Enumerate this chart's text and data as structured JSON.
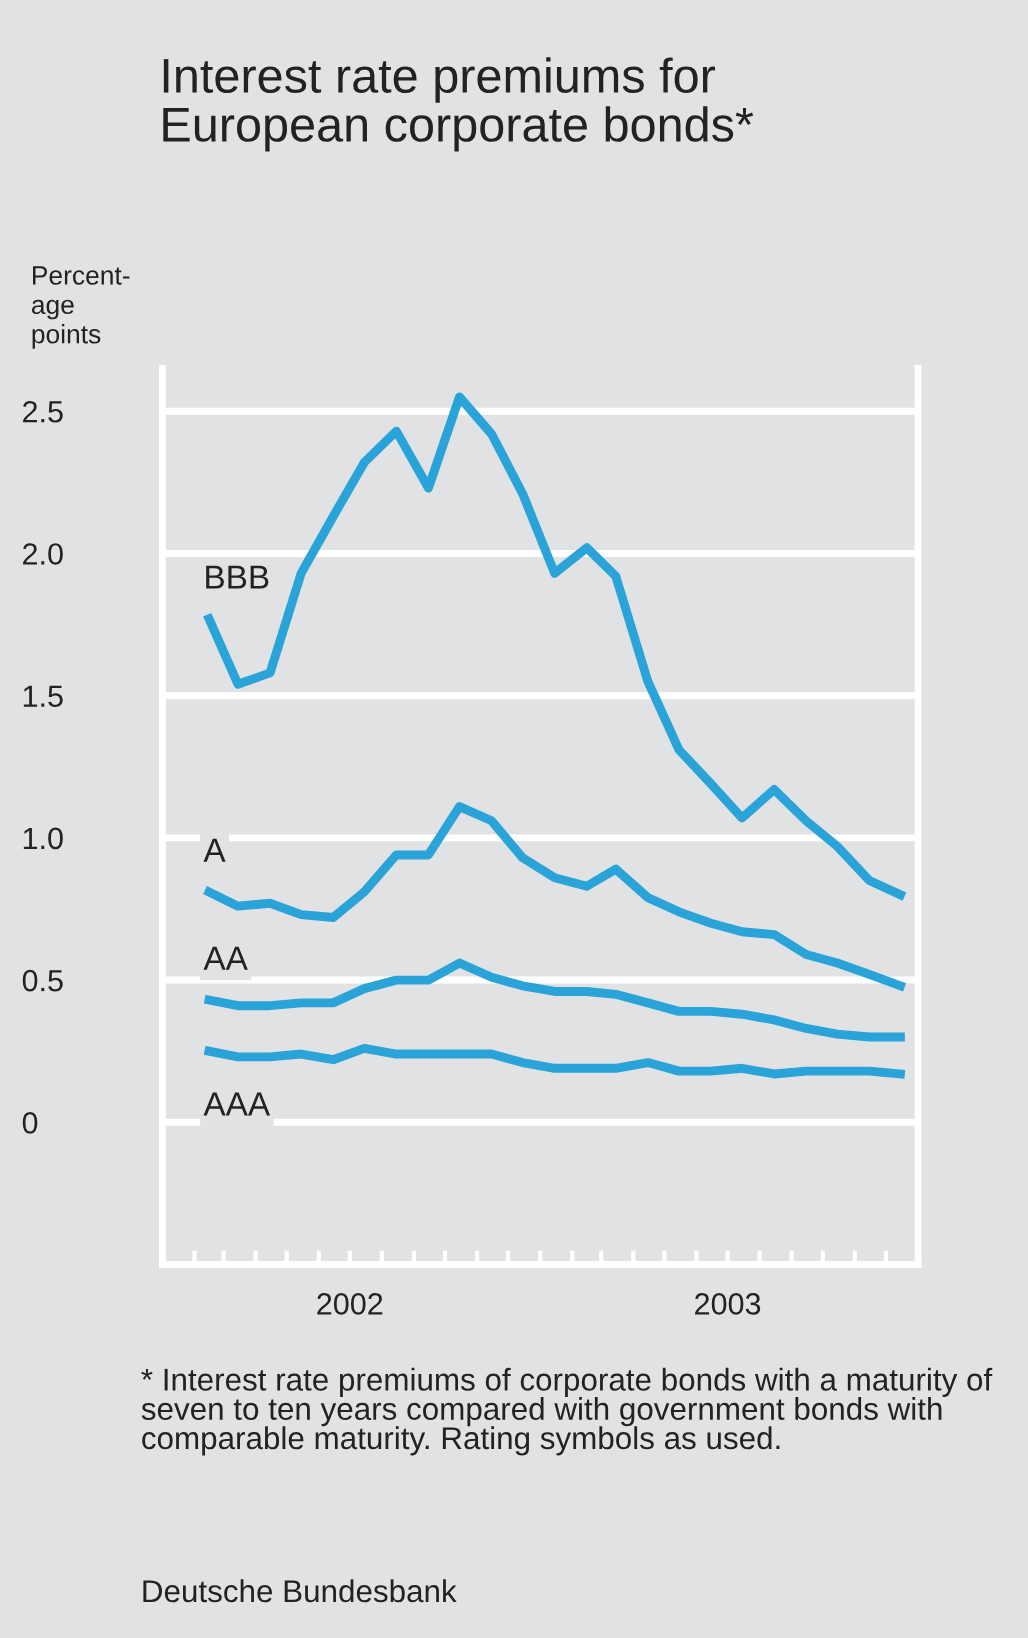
{
  "chart_data": {
    "type": "line",
    "title": "Interest rate premiums for\nEuropean corporate bonds*",
    "ylabel": "Percent-\nage\npoints",
    "x": [
      "2002-02-15",
      "2002-03-15",
      "2002-04-15",
      "2002-05-15",
      "2002-06-15",
      "2002-07-15",
      "2002-08-15",
      "2002-09-15",
      "2002-10-15",
      "2002-11-15",
      "2002-12-15",
      "2003-01-15",
      "2003-02-15",
      "2003-03-15",
      "2003-04-15",
      "2003-05-15",
      "2003-06-15",
      "2003-07-15",
      "2003-08-15",
      "2003-09-15",
      "2003-10-15",
      "2003-11-15",
      "2003-12-15"
    ],
    "series": [
      {
        "name": "BBB",
        "color": "#29a3d8",
        "values": [
          1.77,
          1.54,
          1.58,
          1.93,
          2.13,
          2.32,
          2.43,
          2.23,
          2.55,
          2.42,
          2.21,
          1.93,
          2.02,
          1.92,
          1.55,
          1.31,
          1.19,
          1.07,
          1.17,
          1.06,
          0.97,
          0.85,
          0.8
        ]
      },
      {
        "name": "A",
        "color": "#29a3d8",
        "values": [
          0.81,
          0.76,
          0.77,
          0.73,
          0.72,
          0.81,
          0.94,
          0.94,
          1.11,
          1.06,
          0.93,
          0.86,
          0.83,
          0.89,
          0.79,
          0.74,
          0.7,
          0.67,
          0.66,
          0.59,
          0.56,
          0.52,
          0.48
        ]
      },
      {
        "name": "AA",
        "color": "#29a3d8",
        "values": [
          0.43,
          0.41,
          0.41,
          0.42,
          0.42,
          0.47,
          0.5,
          0.5,
          0.56,
          0.51,
          0.48,
          0.46,
          0.46,
          0.45,
          0.42,
          0.39,
          0.39,
          0.38,
          0.36,
          0.33,
          0.31,
          0.3,
          0.3
        ]
      },
      {
        "name": "AAA",
        "color": "#29a3d8",
        "values": [
          0.25,
          0.23,
          0.23,
          0.24,
          0.22,
          0.26,
          0.24,
          0.24,
          0.24,
          0.24,
          0.21,
          0.19,
          0.19,
          0.19,
          0.21,
          0.18,
          0.18,
          0.19,
          0.17,
          0.18,
          0.18,
          0.18,
          0.17
        ]
      }
    ],
    "xlim": [
      "2002-01-01",
      "2004-01-01"
    ],
    "xticks": [
      {
        "value": "2002-01-01",
        "label": null
      },
      {
        "value": "2002-02-01",
        "label": null
      },
      {
        "value": "2002-03-01",
        "label": null
      },
      {
        "value": "2002-04-01",
        "label": null
      },
      {
        "value": "2002-05-01",
        "label": null
      },
      {
        "value": "2002-06-01",
        "label": null
      },
      {
        "value": "2002-07-01",
        "label": "2002"
      },
      {
        "value": "2002-08-01",
        "label": null
      },
      {
        "value": "2002-09-01",
        "label": null
      },
      {
        "value": "2002-10-01",
        "label": null
      },
      {
        "value": "2002-11-01",
        "label": null
      },
      {
        "value": "2002-12-01",
        "label": null
      },
      {
        "value": "2003-01-01",
        "label": null
      },
      {
        "value": "2003-02-01",
        "label": null
      },
      {
        "value": "2003-03-01",
        "label": null
      },
      {
        "value": "2003-04-01",
        "label": null
      },
      {
        "value": "2003-05-01",
        "label": null
      },
      {
        "value": "2003-06-01",
        "label": null
      },
      {
        "value": "2003-07-01",
        "label": "2003"
      },
      {
        "value": "2003-08-01",
        "label": null
      },
      {
        "value": "2003-09-01",
        "label": null
      },
      {
        "value": "2003-10-01",
        "label": null
      },
      {
        "value": "2003-11-01",
        "label": null
      },
      {
        "value": "2003-12-01",
        "label": null
      },
      {
        "value": "2004-01-01",
        "label": null
      }
    ],
    "ylim": [
      -0.5,
      2.65
    ],
    "yticks": [
      0,
      0.5,
      {
        "value": 1.0,
        "label": "1.0"
      },
      1.5,
      {
        "value": 2.0,
        "label": "2.0"
      },
      2.5
    ],
    "grid": "y",
    "legend": false,
    "marker": "none",
    "line_style": "solid",
    "annotations": [
      "* Interest rate premiums of corporate bonds with a maturity of seven to ten years compared with government bonds with comparable maturity. Rating symbols as used.",
      "Deutsche Bundesbank"
    ]
  }
}
